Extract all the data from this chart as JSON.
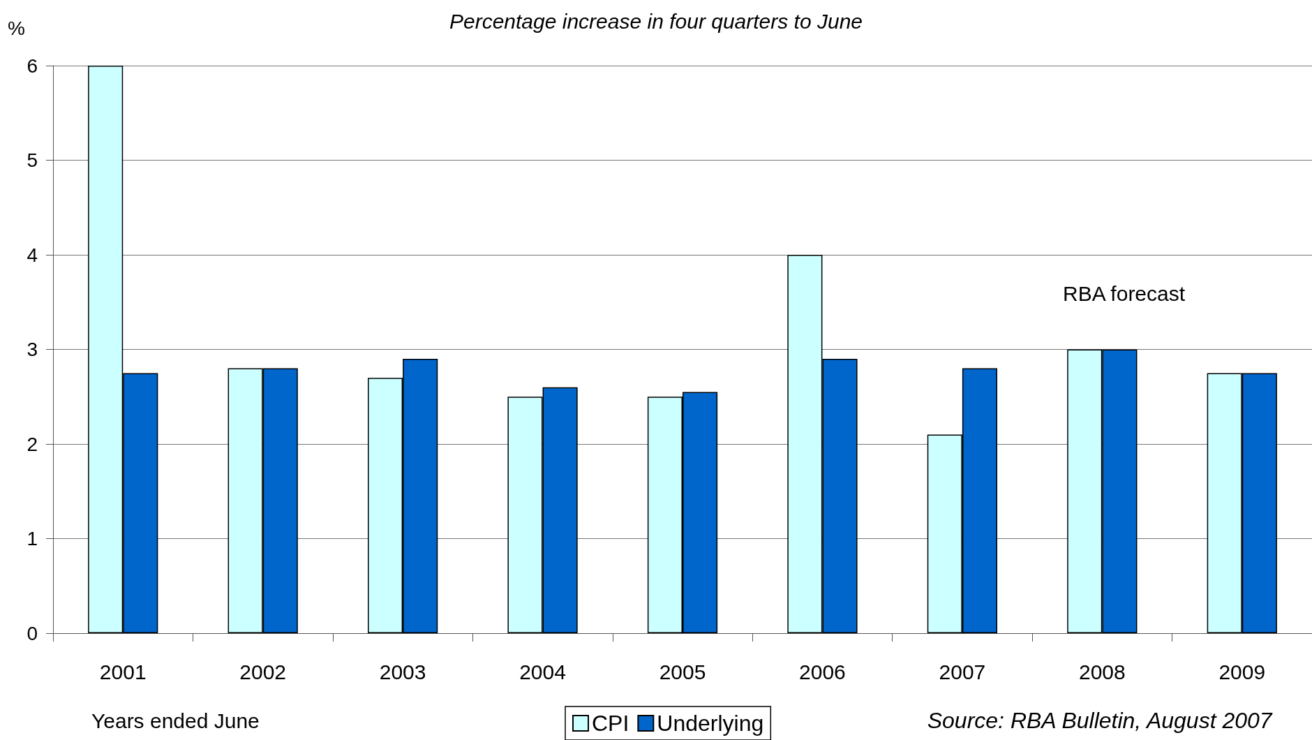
{
  "chart_data": {
    "type": "bar",
    "subtitle": "Percentage increase in four quarters to June",
    "ylabel": "%",
    "xlabel": "Years ended June",
    "categories": [
      "2001",
      "2002",
      "2003",
      "2004",
      "2005",
      "2006",
      "2007",
      "2008",
      "2009"
    ],
    "series": [
      {
        "name": "CPI",
        "color": "#ccffff",
        "values": [
          6,
          2.8,
          2.7,
          2.5,
          2.5,
          4,
          2.1,
          3,
          2.75
        ]
      },
      {
        "name": "Underlying",
        "color": "#0066cc",
        "values": [
          2.75,
          2.8,
          2.9,
          2.6,
          2.55,
          2.9,
          2.8,
          3,
          2.75
        ]
      }
    ],
    "ylim": [
      0,
      6
    ],
    "yticks": [
      0,
      1,
      2,
      3,
      4,
      5,
      6
    ],
    "grid": "y",
    "legend": "bottom",
    "annotations": [
      "RBA forecast",
      "Source: RBA Bulletin, August 2007"
    ]
  }
}
